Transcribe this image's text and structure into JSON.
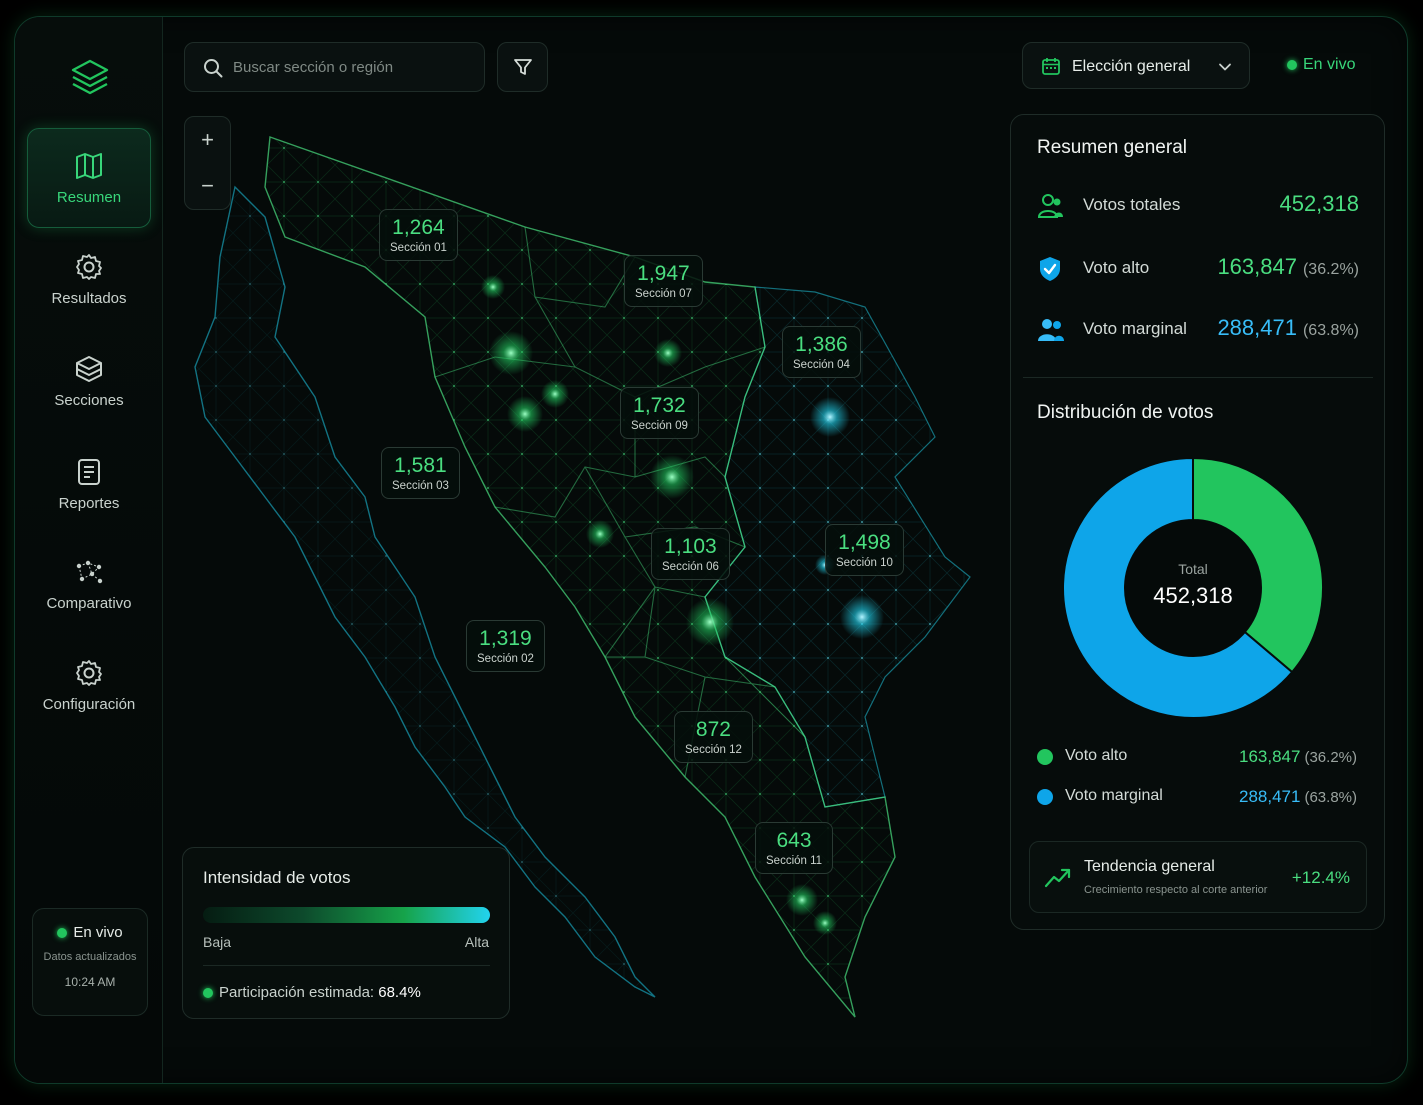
{
  "colors": {
    "accent": "#22c55e",
    "accent_text": "#4ade80",
    "blue": "#0ea5e9",
    "blue_text": "#38bdf8"
  },
  "sidebar": {
    "logo_icon": "layers-icon",
    "items": [
      {
        "label": "Resumen",
        "icon": "map-icon",
        "active": true
      },
      {
        "label": "Resultados",
        "icon": "gear-icon",
        "active": false
      },
      {
        "label": "Secciones",
        "icon": "cube-icon",
        "active": false
      },
      {
        "label": "Reportes",
        "icon": "document-icon",
        "active": false
      },
      {
        "label": "Comparativo",
        "icon": "network-icon",
        "active": false
      },
      {
        "label": "Configuración",
        "icon": "gear-icon",
        "active": false
      }
    ],
    "live": {
      "label": "En vivo",
      "subtitle": "Datos actualizados",
      "time": "10:24 AM"
    }
  },
  "topbar": {
    "search_placeholder": "Buscar sección o región",
    "filter_icon": "filter-icon",
    "election_select": "Elección general",
    "live_label": "En vivo"
  },
  "zoom": {
    "plus": "+",
    "minus": "−"
  },
  "map": {
    "sections": [
      {
        "value": "1,264",
        "name": "Sección 01"
      },
      {
        "value": "1,947",
        "name": "Sección 07"
      },
      {
        "value": "1,386",
        "name": "Sección 04"
      },
      {
        "value": "1,732",
        "name": "Sección 09"
      },
      {
        "value": "1,581",
        "name": "Sección 03"
      },
      {
        "value": "1,103",
        "name": "Sección 06"
      },
      {
        "value": "1,498",
        "name": "Sección 10"
      },
      {
        "value": "1,319",
        "name": "Sección 02"
      },
      {
        "value": "872",
        "name": "Sección 12"
      },
      {
        "value": "643",
        "name": "Sección 11"
      }
    ]
  },
  "intensity": {
    "title": "Intensidad de votos",
    "low": "Baja",
    "high": "Alta",
    "participation_label": "Participación estimada:",
    "participation_value": "68.4%"
  },
  "summary": {
    "title": "Resumen general",
    "total_label": "Votos totales",
    "total_value": "452,318",
    "high_label": "Voto alto",
    "high_value": "163,847",
    "high_pct": "(36.2%)",
    "marginal_label": "Voto marginal",
    "marginal_value": "288,471",
    "marginal_pct": "(63.8%)"
  },
  "distribution": {
    "title": "Distribución de votos",
    "center_label": "Total",
    "center_value": "452,318",
    "slices": [
      {
        "name": "Voto alto",
        "value": "163,847",
        "pct": "(36.2%)",
        "fraction": 0.362,
        "color": "#22c55e"
      },
      {
        "name": "Voto marginal",
        "value": "288,471",
        "pct": "(63.8%)",
        "fraction": 0.638,
        "color": "#0ea5e9"
      }
    ]
  },
  "trend": {
    "label": "Tendencia general",
    "sub": "Crecimiento respecto al corte anterior",
    "value": "+12.4%"
  }
}
